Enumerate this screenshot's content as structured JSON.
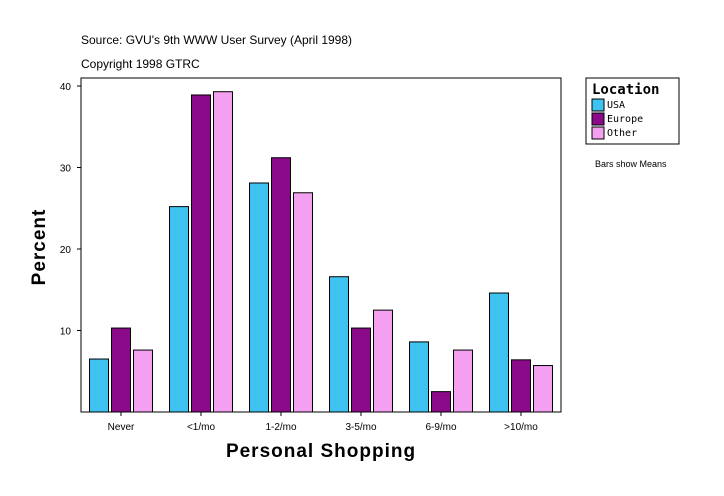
{
  "header": {
    "source": "Source: GVU's 9th WWW User Survey (April 1998)",
    "copyright": "Copyright 1998 GTRC"
  },
  "note": "Bars show Means",
  "legend": {
    "title": "Location",
    "items": [
      "USA",
      "Europe",
      "Other"
    ]
  },
  "colors": {
    "USA": "#3ec3f0",
    "Europe": "#8a0a8a",
    "Other": "#f3a0f0"
  },
  "chart_data": {
    "type": "bar",
    "title": "",
    "xlabel": "Personal Shopping",
    "ylabel": "Percent",
    "categories": [
      "Never",
      "<1/mo",
      "1-2/mo",
      "3-5/mo",
      "6-9/mo",
      ">10/mo"
    ],
    "series": [
      {
        "name": "USA",
        "values": [
          6.5,
          25.2,
          28.1,
          16.6,
          8.6,
          14.6
        ]
      },
      {
        "name": "Europe",
        "values": [
          10.3,
          38.9,
          31.2,
          10.3,
          2.5,
          6.4
        ]
      },
      {
        "name": "Other",
        "values": [
          7.6,
          39.3,
          26.9,
          12.5,
          7.6,
          5.7
        ]
      }
    ],
    "ylim": [
      0,
      40
    ],
    "yticks": [
      10,
      20,
      30,
      40
    ],
    "legend_position": "right",
    "grid": false
  }
}
